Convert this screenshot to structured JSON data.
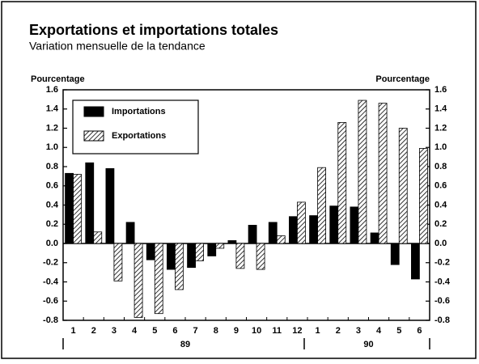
{
  "chart_data": {
    "type": "bar",
    "title": "Exportations et importations totales",
    "subtitle": "Variation mensuelle de la tendance",
    "y_label": "Pourcentage",
    "y2_label": "Pourcentage",
    "categories": [
      "1",
      "2",
      "3",
      "4",
      "5",
      "6",
      "7",
      "8",
      "9",
      "10",
      "11",
      "12",
      "1",
      "2",
      "3",
      "4",
      "5",
      "6"
    ],
    "groups": [
      "89",
      "90"
    ],
    "series": [
      {
        "name": "Importations",
        "color": "#000000",
        "pattern": "solid",
        "values": [
          0.73,
          0.84,
          0.78,
          0.22,
          -0.17,
          -0.27,
          -0.25,
          -0.13,
          0.03,
          0.19,
          0.22,
          0.28,
          0.29,
          0.39,
          0.38,
          0.11,
          -0.22,
          -0.37
        ]
      },
      {
        "name": "Exportations",
        "color": "#000000",
        "pattern": "hatch",
        "values": [
          0.72,
          0.12,
          -0.39,
          -0.77,
          -0.73,
          -0.48,
          -0.18,
          -0.05,
          -0.26,
          -0.27,
          0.08,
          0.43,
          0.79,
          1.26,
          1.49,
          1.46,
          1.2,
          0.99
        ]
      }
    ],
    "ylim": [
      -0.8,
      1.6
    ],
    "yticks": [
      1.6,
      1.4,
      1.2,
      {
        "value": 1,
        "label": "1.0"
      },
      0.8,
      0.6,
      0.4,
      0.2,
      {
        "value": 0,
        "label": "0.0"
      },
      -0.2,
      -0.4,
      -0.6,
      -0.8
    ],
    "y2lim": [
      -0.8,
      1.6
    ],
    "y2ticks": [
      1.6,
      1.4,
      1.2,
      {
        "value": 1,
        "label": "1.0"
      },
      0.8,
      0.6,
      0.4,
      0.2,
      {
        "value": 0,
        "label": "0.0"
      },
      -0.2,
      -0.4,
      -0.6,
      -0.8
    ],
    "legend": "upper-left",
    "grid": false
  }
}
